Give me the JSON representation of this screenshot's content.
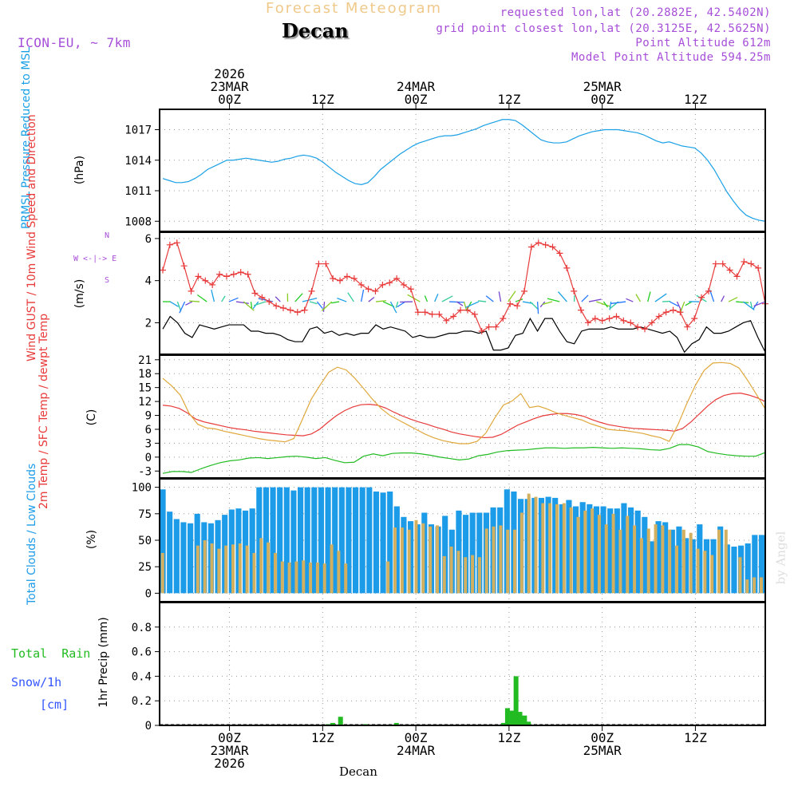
{
  "header": {
    "subtitle": "Forecast Meteogram",
    "location": "Decan",
    "model": "ICON-EU, ~ 7km",
    "requested": "requested lon,lat (20.2882E, 42.5402N)",
    "grid_point": "grid point closest lon,lat (20.3125E, 42.5625N)",
    "point_altitude": "Point Altitude 612m",
    "model_altitude": "Model Point Altitude 594.25m",
    "footer_location": "Decan",
    "watermark": "by Angel"
  },
  "colors": {
    "pressure": "#1aa0e6",
    "gust": "#e83a3a",
    "wind": "#000000",
    "temp2m": "#e83a3a",
    "sfc": "#e0a83c",
    "dewpt": "#22bb22",
    "total_cloud": "#1c9be8",
    "low_cloud": "#d3b060",
    "rain": "#22bb22",
    "snow": "#3355ff",
    "purple": "#a64ed8"
  },
  "time_axis": {
    "top_labels": [
      {
        "lines": [
          "2026",
          "23MAR",
          "00Z"
        ],
        "hour": 9
      },
      {
        "lines": [
          "12Z"
        ],
        "hour": 21
      },
      {
        "lines": [
          "24MAR",
          "00Z"
        ],
        "hour": 33
      },
      {
        "lines": [
          "12Z"
        ],
        "hour": 45
      },
      {
        "lines": [
          "25MAR",
          "00Z"
        ],
        "hour": 57
      },
      {
        "lines": [
          "12Z"
        ],
        "hour": 69
      }
    ],
    "bottom_labels": [
      {
        "lines": [
          "00Z",
          "23MAR",
          "2026"
        ],
        "hour": 9
      },
      {
        "lines": [
          "12Z"
        ],
        "hour": 21
      },
      {
        "lines": [
          "00Z",
          "24MAR"
        ],
        "hour": 33
      },
      {
        "lines": [
          "12Z"
        ],
        "hour": 45
      },
      {
        "lines": [
          "00Z",
          "25MAR"
        ],
        "hour": 57
      },
      {
        "lines": [
          "12Z"
        ],
        "hour": 69
      }
    ]
  },
  "chart_data": [
    {
      "type": "line",
      "title": "PRMSL Pressure Reduced to MSL",
      "ylabel": "(hPa)",
      "ylim": [
        1007,
        1019
      ],
      "yticks": [
        1008,
        1011,
        1014,
        1017
      ],
      "series": [
        {
          "name": "PRMSL",
          "values": [
            1012.2,
            1012.0,
            1011.8,
            1011.8,
            1011.9,
            1012.2,
            1012.6,
            1013.1,
            1013.4,
            1013.7,
            1014.0,
            1014.0,
            1014.1,
            1014.2,
            1014.1,
            1014.0,
            1013.9,
            1013.8,
            1013.9,
            1014.1,
            1014.2,
            1014.4,
            1014.5,
            1014.4,
            1014.2,
            1013.8,
            1013.3,
            1012.8,
            1012.4,
            1012.0,
            1011.7,
            1011.6,
            1011.8,
            1012.4,
            1013.1,
            1013.6,
            1014.1,
            1014.6,
            1015.0,
            1015.4,
            1015.7,
            1015.9,
            1016.1,
            1016.3,
            1016.4,
            1016.4,
            1016.5,
            1016.7,
            1016.9,
            1017.1,
            1017.4,
            1017.6,
            1017.8,
            1018.0,
            1018.0,
            1017.9,
            1017.5,
            1017.0,
            1016.5,
            1016.0,
            1015.8,
            1015.7,
            1015.7,
            1015.8,
            1016.1,
            1016.4,
            1016.6,
            1016.8,
            1016.9,
            1017.0,
            1017.0,
            1017.0,
            1016.9,
            1016.8,
            1016.7,
            1016.5,
            1016.2,
            1015.9,
            1015.7,
            1015.8,
            1015.6,
            1015.4,
            1015.3,
            1015.2,
            1014.7,
            1014.0,
            1013.1,
            1012.0,
            1010.9,
            1010.0,
            1009.2,
            1008.6,
            1008.3,
            1008.1,
            1008.0
          ]
        }
      ]
    },
    {
      "type": "line",
      "title": "Wind GUST / 10m Wind Speed and Direction",
      "ylabel": "(m/s)",
      "ylim": [
        0.5,
        6.3
      ],
      "yticks": [
        2,
        4,
        6
      ],
      "compass": "W <-|-> E",
      "compass_n": "N",
      "compass_s": "S",
      "series": [
        {
          "name": "Wind GUST",
          "values": [
            4.5,
            5.7,
            5.8,
            4.7,
            3.5,
            4.2,
            4.0,
            3.8,
            4.3,
            4.2,
            4.3,
            4.4,
            4.3,
            3.4,
            3.2,
            3.0,
            2.8,
            2.7,
            2.6,
            2.5,
            2.6,
            3.5,
            4.8,
            4.8,
            4.1,
            4.0,
            4.2,
            4.1,
            3.8,
            3.6,
            3.5,
            3.8,
            3.9,
            4.1,
            3.8,
            3.6,
            2.5,
            2.5,
            2.4,
            2.4,
            2.1,
            2.3,
            2.6,
            2.6,
            2.4,
            1.6,
            1.8,
            1.8,
            2.2,
            2.9,
            2.8,
            3.5,
            5.6,
            5.8,
            5.7,
            5.6,
            5.3,
            4.6,
            3.5,
            2.6,
            2.0,
            2.2,
            2.1,
            2.2,
            2.3,
            2.1,
            2.0,
            1.8,
            1.7,
            2.0,
            2.3,
            2.5,
            2.6,
            2.5,
            1.8,
            2.2,
            3.2,
            3.5,
            4.8,
            4.8,
            4.5,
            4.2,
            4.9,
            4.8,
            4.6,
            2.9
          ]
        },
        {
          "name": "10m Wind",
          "values": [
            1.7,
            2.3,
            2.0,
            1.5,
            1.3,
            1.9,
            1.8,
            1.7,
            1.8,
            1.9,
            1.9,
            1.9,
            1.6,
            1.6,
            1.5,
            1.5,
            1.4,
            1.2,
            1.1,
            1.1,
            1.7,
            1.8,
            1.5,
            1.6,
            1.4,
            1.5,
            1.4,
            1.5,
            1.5,
            1.9,
            1.7,
            1.8,
            1.7,
            1.6,
            1.3,
            1.4,
            1.3,
            1.3,
            1.4,
            1.5,
            1.5,
            1.6,
            1.6,
            1.5,
            1.6,
            0.7,
            0.7,
            0.8,
            1.4,
            1.5,
            2.2,
            1.6,
            2.2,
            2.2,
            1.6,
            1.1,
            1.0,
            1.6,
            1.7,
            1.7,
            1.7,
            1.8,
            1.7,
            1.7,
            1.7,
            1.8,
            1.7,
            1.6,
            1.5,
            1.6,
            1.3,
            0.6,
            1.0,
            1.2,
            1.8,
            1.5,
            1.5,
            1.6,
            1.8,
            2.0,
            2.1,
            1.3,
            0.6
          ]
        }
      ]
    },
    {
      "type": "line",
      "title": "2m Temp / SFC Temp / dewpt Temp",
      "ylabel": "(C)",
      "ylim": [
        -4.5,
        22
      ],
      "yticks": [
        -3,
        0,
        3,
        6,
        9,
        12,
        15,
        18,
        21
      ],
      "series": [
        {
          "name": "2m Temp",
          "values": [
            11.2,
            11.0,
            10.5,
            9.5,
            8.2,
            7.6,
            7.2,
            6.8,
            6.4,
            6.1,
            5.9,
            5.6,
            5.4,
            5.2,
            5.0,
            4.8,
            4.7,
            4.6,
            5.0,
            6.0,
            7.5,
            8.9,
            10.0,
            10.8,
            11.3,
            11.4,
            11.2,
            10.6,
            9.7,
            8.9,
            8.2,
            7.6,
            7.1,
            6.5,
            6.0,
            5.4,
            5.0,
            4.7,
            4.4,
            4.2,
            4.3,
            4.9,
            5.9,
            6.9,
            7.6,
            8.3,
            8.9,
            9.2,
            9.4,
            9.4,
            9.2,
            8.8,
            8.1,
            7.5,
            7.0,
            6.7,
            6.4,
            6.2,
            6.1,
            6.0,
            5.9,
            5.8,
            5.6,
            6.2,
            7.6,
            9.3,
            11.0,
            12.4,
            13.3,
            13.7,
            13.8,
            13.4,
            12.8,
            12.0
          ]
        },
        {
          "name": "SFC Temp",
          "values": [
            17.0,
            15.4,
            13.4,
            9.5,
            7.1,
            6.3,
            6.1,
            5.6,
            5.2,
            4.8,
            4.4,
            4.0,
            3.7,
            3.5,
            3.3,
            4.0,
            8.2,
            12.5,
            15.5,
            18.3,
            19.4,
            18.8,
            17.0,
            14.8,
            12.5,
            10.5,
            9.0,
            8.0,
            7.0,
            6.0,
            5.0,
            4.2,
            3.6,
            3.2,
            2.9,
            2.9,
            3.4,
            5.2,
            8.4,
            11.2,
            12.1,
            13.7,
            10.7,
            11.0,
            10.4,
            9.6,
            9.0,
            8.5,
            8.0,
            7.2,
            6.6,
            6.0,
            5.8,
            5.7,
            5.4,
            5.1,
            4.6,
            4.2,
            3.4,
            7.0,
            11.5,
            15.5,
            18.7,
            20.3,
            20.4,
            20.2,
            19.2,
            16.5,
            13.5,
            10.4
          ]
        },
        {
          "name": "dewpt Temp",
          "values": [
            -3.5,
            -3.1,
            -3.1,
            -3.3,
            -2.5,
            -1.8,
            -1.2,
            -0.8,
            -0.6,
            -0.2,
            -0.1,
            -0.3,
            -0.1,
            0.1,
            0.2,
            0.0,
            -0.3,
            -0.1,
            -0.7,
            -1.2,
            -1.1,
            0.2,
            0.7,
            0.3,
            0.8,
            0.9,
            0.9,
            0.7,
            0.4,
            0.0,
            -0.3,
            -0.6,
            -0.4,
            0.3,
            0.6,
            1.1,
            1.4,
            1.5,
            1.6,
            1.8,
            2.0,
            2.0,
            1.9,
            2.0,
            2.0,
            2.1,
            2.0,
            1.9,
            2.0,
            1.9,
            1.8,
            1.6,
            1.5,
            1.9,
            2.7,
            2.7,
            2.2,
            1.2,
            0.8,
            0.5,
            0.3,
            0.2,
            0.2,
            1.0
          ]
        }
      ]
    },
    {
      "type": "bar",
      "title": "Total Clouds / Low Clouds",
      "ylabel": "(%)",
      "ylim": [
        -8,
        108
      ],
      "yticks": [
        0,
        25,
        50,
        75,
        100
      ],
      "series": [
        {
          "name": "Total Clouds",
          "values": [
            98,
            77,
            70,
            67,
            66,
            75,
            67,
            66,
            69,
            74,
            79,
            80,
            78,
            80,
            100,
            100,
            100,
            100,
            100,
            97,
            100,
            100,
            100,
            100,
            100,
            100,
            100,
            100,
            100,
            100,
            100,
            96,
            95,
            96,
            82,
            72,
            68,
            65,
            76,
            65,
            63,
            73,
            60,
            78,
            74,
            76,
            76,
            76,
            81,
            81,
            98,
            96,
            89,
            89,
            90,
            90,
            91,
            90,
            84,
            88,
            82,
            86,
            84,
            82,
            82,
            80,
            80,
            85,
            81,
            78,
            72,
            49,
            68,
            67,
            60,
            63,
            52,
            51,
            65,
            51,
            51,
            63,
            46,
            44,
            45,
            47,
            55,
            55
          ]
        },
        {
          "name": "Low Clouds",
          "values": [
            38,
            0,
            0,
            0,
            0,
            45,
            50,
            47,
            42,
            45,
            46,
            47,
            45,
            38,
            52,
            48,
            38,
            30,
            29,
            30,
            31,
            29,
            29,
            28,
            46,
            40,
            28,
            0,
            0,
            0,
            0,
            0,
            30,
            62,
            62,
            60,
            69,
            66,
            63,
            64,
            35,
            44,
            40,
            34,
            36,
            34,
            61,
            63,
            64,
            60,
            60,
            76,
            94,
            91,
            85,
            85,
            84,
            85,
            81,
            72,
            78,
            80,
            74,
            65,
            75,
            60,
            73,
            64,
            52,
            61,
            65,
            64,
            60,
            45,
            60,
            57,
            42,
            40,
            36,
            60,
            60,
            0,
            34,
            13,
            15,
            15
          ]
        }
      ]
    },
    {
      "type": "bar",
      "title": "Total Rain / Snow/1h [cm]",
      "ylabel": "1hr Precip (mm)",
      "ylim": [
        0,
        1.0
      ],
      "yticks": [
        0,
        0.2,
        0.4,
        0.6,
        0.8
      ],
      "legend": {
        "rain": "Total  Rain",
        "snow": "Snow/1h",
        "snow_unit": "[cm]"
      },
      "series": [
        {
          "name": "Total Rain",
          "bars": [
            [
              21.7,
              0.01
            ],
            [
              22.3,
              0.02
            ],
            [
              23.3,
              0.07
            ],
            [
              26.5,
              0.01
            ],
            [
              30.5,
              0.02
            ],
            [
              44.3,
              0.02
            ],
            [
              44.8,
              0.14
            ],
            [
              45.4,
              0.12
            ],
            [
              45.9,
              0.4
            ],
            [
              46.4,
              0.11
            ],
            [
              47.0,
              0.08
            ],
            [
              47.5,
              0.03
            ]
          ]
        }
      ]
    }
  ]
}
